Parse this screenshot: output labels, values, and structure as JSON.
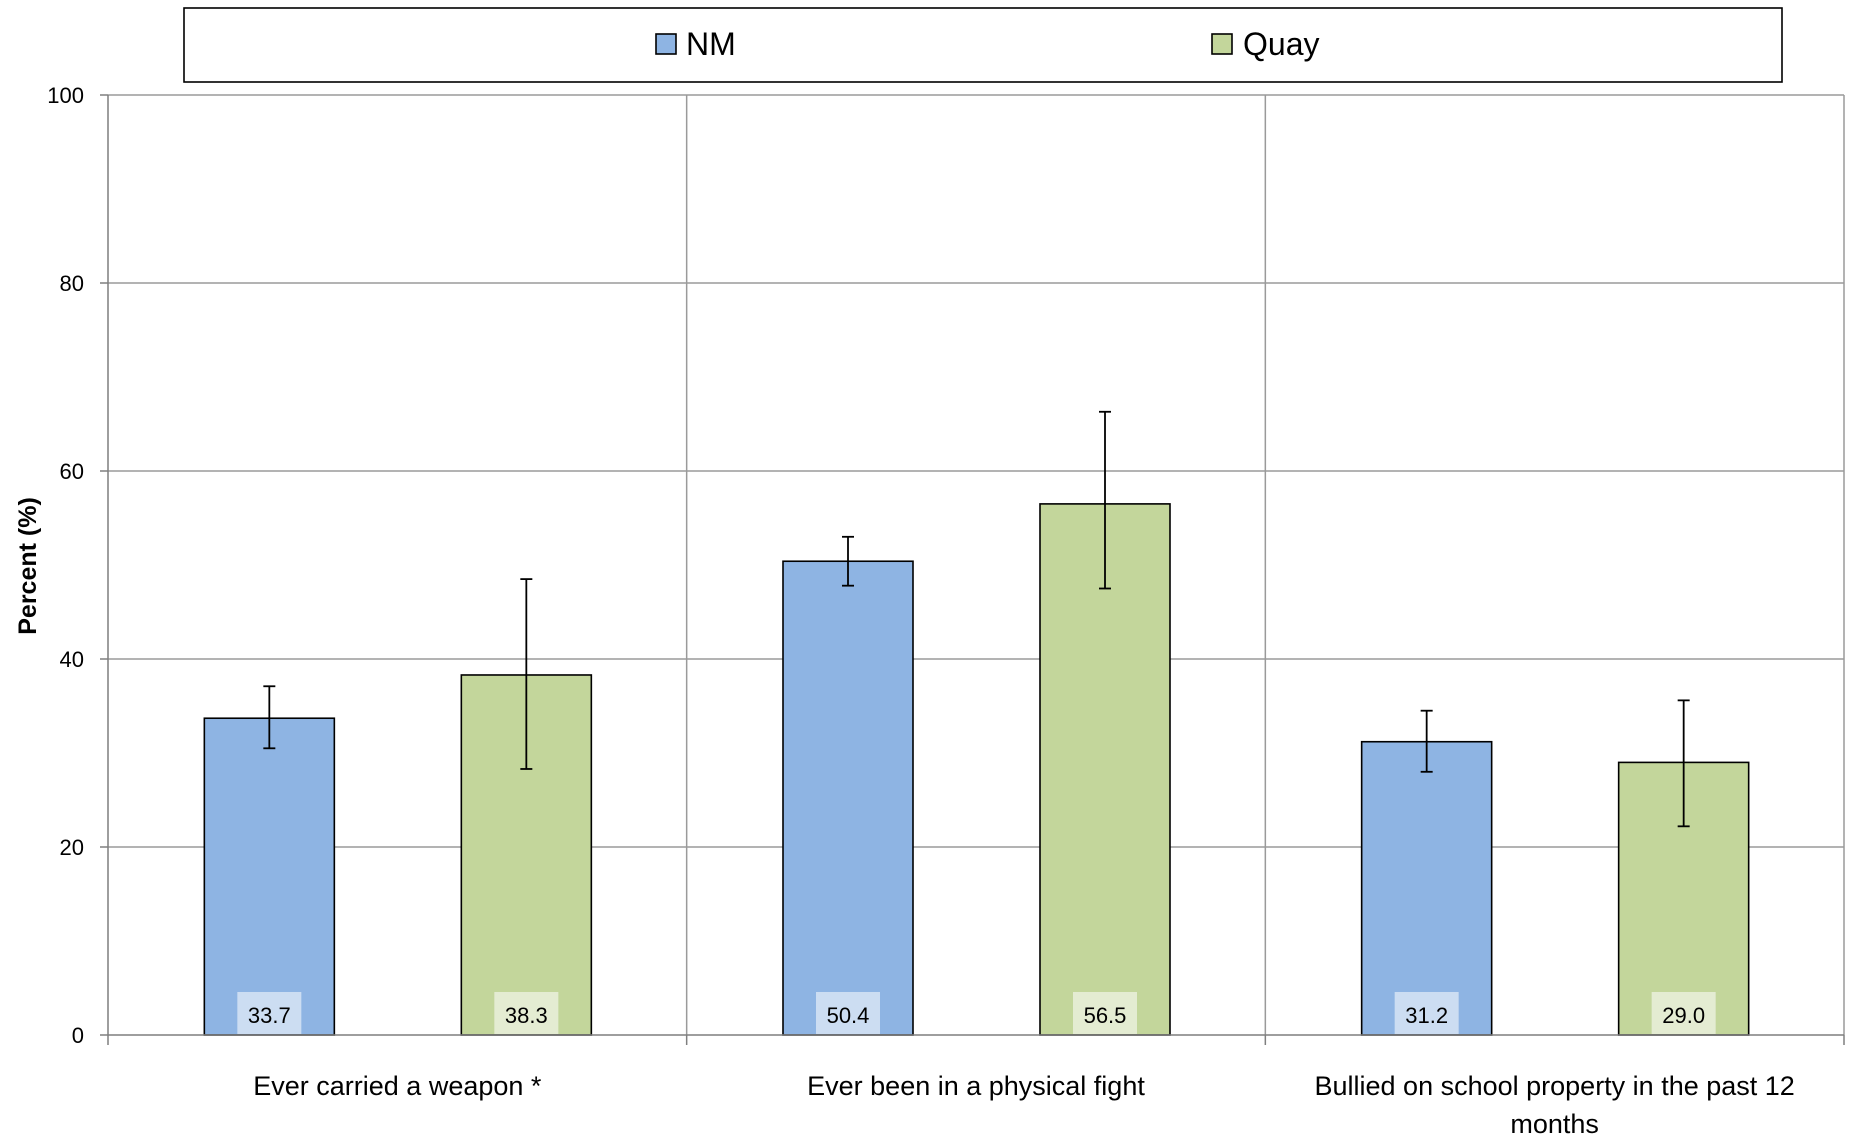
{
  "chart_data": {
    "type": "bar",
    "title": "",
    "ylabel": "Percent (%)",
    "xlabel": "",
    "ylim": [
      0,
      100
    ],
    "yticks": [
      0,
      20,
      40,
      60,
      80,
      100
    ],
    "grid": true,
    "legend_position": "top",
    "categories": [
      [
        "Ever carried a weapon *"
      ],
      [
        "Ever been in a physical fight"
      ],
      [
        "Bullied on school property in the past 12",
        "months"
      ]
    ],
    "series": [
      {
        "name": "NM",
        "color": "#8EB4E3",
        "values": [
          33.7,
          50.4,
          31.2
        ],
        "labels": [
          "33.7",
          "50.4",
          "31.2"
        ],
        "error_low": [
          30.5,
          47.8,
          28.0
        ],
        "error_high": [
          37.1,
          53.0,
          34.5
        ]
      },
      {
        "name": "Quay",
        "color": "#C3D69B",
        "values": [
          38.3,
          56.5,
          29.0
        ],
        "labels": [
          "38.3",
          "56.5",
          "29.0"
        ],
        "error_low": [
          28.3,
          47.5,
          22.2
        ],
        "error_high": [
          48.5,
          66.3,
          35.6
        ]
      }
    ]
  }
}
